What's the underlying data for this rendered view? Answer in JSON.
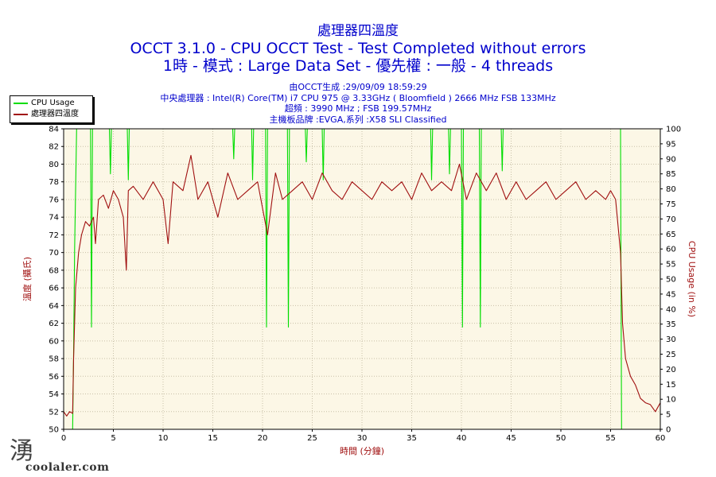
{
  "titles": [
    "處理器四溫度",
    "OCCT 3.1.0 - CPU OCCT Test - Test Completed without errors",
    "1時 - 模式 : Large Data Set - 優先權 : 一般 - 4 threads"
  ],
  "info_lines": [
    "由OCCT生成 :29/09/09 18:59:29",
    "中央處理器 : Intel(R) Core(TM) i7 CPU 975 @ 3.33GHz ( Bloomfield ) 2666 MHz FSB 133MHz",
    "超頻 : 3990 MHz ; FSB 199.57MHz",
    "主機板品牌 :EVGA,系列 :X58 SLI Classified"
  ],
  "watermark": {
    "glyph": "湧",
    "text": "coolaler.com"
  },
  "colors": {
    "title": "#0000cc",
    "plot_bg": "#fcf7e6",
    "usage": "#00dd00",
    "temp": "#a01010",
    "axis_label": "#a01010"
  },
  "chart_data": {
    "type": "line",
    "xlabel": "時間 (分鐘)",
    "ylabel_left": "溫度 (攝氏)",
    "ylabel_right": "CPU Usage (in %)",
    "xlim": [
      0,
      60
    ],
    "ylim_left": [
      50,
      84
    ],
    "ylim_right": [
      0,
      100
    ],
    "grid": true,
    "legend_position": "top-left",
    "x_ticks": [
      0,
      5,
      10,
      15,
      20,
      25,
      30,
      35,
      40,
      45,
      50,
      55,
      60
    ],
    "y_left_ticks": [
      50,
      52,
      54,
      56,
      58,
      60,
      62,
      64,
      66,
      68,
      70,
      72,
      74,
      76,
      78,
      80,
      82,
      84
    ],
    "y_right_ticks": [
      0,
      5,
      10,
      15,
      20,
      25,
      30,
      35,
      40,
      45,
      50,
      55,
      60,
      65,
      70,
      75,
      80,
      85,
      90,
      95,
      100
    ],
    "series": [
      {
        "name": "CPU Usage",
        "axis": "right",
        "x": [
          0,
          0.5,
          0.9,
          1.0,
          1.1,
          1.3,
          2.7,
          2.8,
          2.9,
          4.6,
          4.7,
          4.8,
          6.4,
          6.5,
          6.6,
          17.0,
          17.1,
          17.2,
          18.9,
          19.0,
          19.1,
          20.3,
          20.4,
          20.5,
          22.5,
          22.6,
          22.7,
          24.3,
          24.4,
          24.5,
          26.0,
          26.1,
          26.2,
          36.9,
          37.0,
          37.1,
          38.7,
          38.8,
          38.9,
          40.0,
          40.1,
          40.2,
          41.8,
          41.9,
          42.0,
          44.0,
          44.1,
          44.2,
          56.0,
          56.05,
          56.1,
          60
        ],
        "y": [
          0,
          0,
          0,
          25,
          60,
          100,
          100,
          34,
          100,
          100,
          85,
          100,
          100,
          83,
          100,
          100,
          90,
          100,
          100,
          83,
          100,
          100,
          34,
          100,
          100,
          34,
          100,
          100,
          89,
          100,
          100,
          83,
          100,
          100,
          83,
          100,
          100,
          85,
          100,
          100,
          34,
          100,
          100,
          34,
          100,
          100,
          86,
          100,
          100,
          50,
          0,
          0
        ]
      },
      {
        "name": "處理器四溫度",
        "axis": "left",
        "x": [
          0,
          0.3,
          0.6,
          0.9,
          1.0,
          1.2,
          1.5,
          1.8,
          2.2,
          2.6,
          3.0,
          3.2,
          3.5,
          4.0,
          4.5,
          5.0,
          5.5,
          6.0,
          6.3,
          6.5,
          7.0,
          8.0,
          9.0,
          10.0,
          10.5,
          11.0,
          12.0,
          12.8,
          13.5,
          14.5,
          15.5,
          16.5,
          17.5,
          18.5,
          19.5,
          20.5,
          21.3,
          22.0,
          23.0,
          24.0,
          25.0,
          26.0,
          27.0,
          28.0,
          29.0,
          30.0,
          31.0,
          32.0,
          33.0,
          34.0,
          35.0,
          36.0,
          37.0,
          38.0,
          39.0,
          39.8,
          40.5,
          41.5,
          42.5,
          43.5,
          44.5,
          45.5,
          46.5,
          47.5,
          48.5,
          49.5,
          50.5,
          51.5,
          52.5,
          53.5,
          54.5,
          55.0,
          55.5,
          56.0,
          56.2,
          56.5,
          57.0,
          57.5,
          58.0,
          58.5,
          59.0,
          59.5,
          60
        ],
        "y": [
          52,
          51.5,
          52,
          51.8,
          58,
          66,
          70,
          72,
          73.5,
          73,
          74,
          71,
          76,
          76.5,
          75,
          77,
          76,
          74,
          68,
          77,
          77.5,
          76,
          78,
          76,
          71,
          78,
          77,
          81,
          76,
          78,
          74,
          79,
          76,
          77,
          78,
          72,
          79,
          76,
          77,
          78,
          76,
          79,
          77,
          76,
          78,
          77,
          76,
          78,
          77,
          78,
          76,
          79,
          77,
          78,
          77,
          80,
          76,
          79,
          77,
          79,
          76,
          78,
          76,
          77,
          78,
          76,
          77,
          78,
          76,
          77,
          76,
          77,
          76,
          70,
          62,
          58,
          56,
          55,
          53.5,
          53,
          52.8,
          52,
          53
        ]
      }
    ]
  }
}
